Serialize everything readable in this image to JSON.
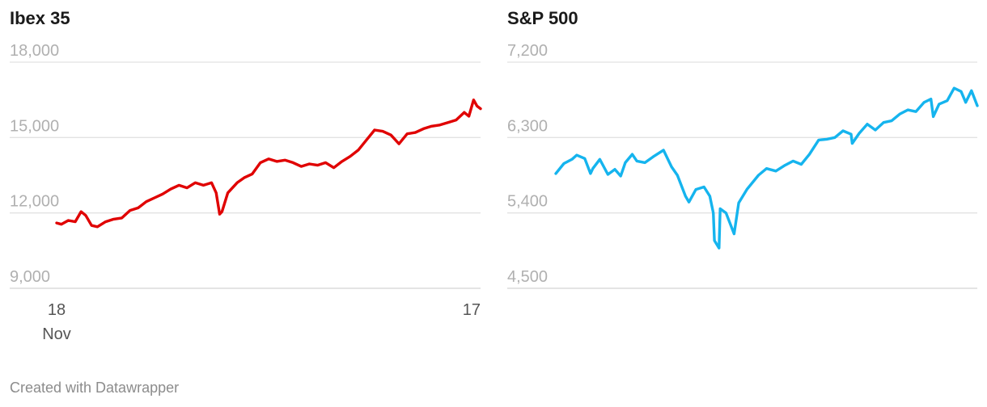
{
  "footer": "Created with Datawrapper",
  "chart_data": [
    {
      "type": "line",
      "title": "Ibex 35",
      "color": "#e00000",
      "ylim": [
        9000,
        18000
      ],
      "yticks": [
        9000,
        12000,
        15000,
        18000
      ],
      "ytick_labels": [
        "9,000",
        "12,000",
        "15,000",
        "18,000"
      ],
      "xlim": [
        "2024-11-18",
        "2025-11-17"
      ],
      "xtick_labels": [
        {
          "date": "2024-11-18",
          "lines": [
            "18",
            "Nov"
          ]
        },
        {
          "date": "2025-11-17",
          "lines": [
            "17"
          ]
        }
      ],
      "grid": true,
      "series": [
        {
          "x": [
            "2024-11-18",
            "2024-11-22",
            "2024-11-28",
            "2024-12-04",
            "2024-12-09",
            "2024-12-13",
            "2024-12-18",
            "2024-12-23",
            "2024-12-30",
            "2025-01-06",
            "2025-01-13",
            "2025-01-20",
            "2025-01-27",
            "2025-02-03",
            "2025-02-10",
            "2025-02-17",
            "2025-02-24",
            "2025-03-03",
            "2025-03-10",
            "2025-03-17",
            "2025-03-24",
            "2025-03-31",
            "2025-04-04",
            "2025-04-07",
            "2025-04-09",
            "2025-04-14",
            "2025-04-22",
            "2025-04-28",
            "2025-05-05",
            "2025-05-12",
            "2025-05-19",
            "2025-05-26",
            "2025-06-02",
            "2025-06-09",
            "2025-06-16",
            "2025-06-23",
            "2025-06-30",
            "2025-07-07",
            "2025-07-14",
            "2025-07-21",
            "2025-07-28",
            "2025-08-04",
            "2025-08-11",
            "2025-08-18",
            "2025-08-25",
            "2025-09-01",
            "2025-09-08",
            "2025-09-15",
            "2025-09-22",
            "2025-09-29",
            "2025-10-06",
            "2025-10-13",
            "2025-10-20",
            "2025-10-27",
            "2025-11-03",
            "2025-11-07",
            "2025-11-11",
            "2025-11-14",
            "2025-11-17"
          ],
          "y": [
            11600,
            11550,
            11700,
            11650,
            12050,
            11900,
            11500,
            11450,
            11650,
            11750,
            11800,
            12100,
            12200,
            12450,
            12600,
            12750,
            12950,
            13100,
            13000,
            13200,
            13100,
            13200,
            12800,
            11950,
            12050,
            12800,
            13200,
            13400,
            13550,
            14000,
            14150,
            14050,
            14100,
            14000,
            13850,
            13950,
            13900,
            14000,
            13800,
            14050,
            14250,
            14500,
            14900,
            15300,
            15250,
            15100,
            14750,
            15150,
            15200,
            15350,
            15450,
            15500,
            15600,
            15700,
            16000,
            15850,
            16500,
            16250,
            16150
          ]
        }
      ]
    },
    {
      "type": "line",
      "title": "S&P 500",
      "color": "#15b4ee",
      "ylim": [
        4500,
        7200
      ],
      "yticks": [
        4500,
        5400,
        6300,
        7200
      ],
      "ytick_labels": [
        "4,500",
        "5,400",
        "6,300",
        "7,200"
      ],
      "xlim": [
        "2024-11-18",
        "2025-11-17"
      ],
      "grid": true,
      "series": [
        {
          "x": [
            "2024-11-18",
            "2024-11-25",
            "2024-12-02",
            "2024-12-06",
            "2024-12-13",
            "2024-12-18",
            "2024-12-20",
            "2024-12-26",
            "2025-01-02",
            "2025-01-08",
            "2025-01-13",
            "2025-01-17",
            "2025-01-23",
            "2025-01-27",
            "2025-02-03",
            "2025-02-10",
            "2025-02-19",
            "2025-02-26",
            "2025-03-03",
            "2025-03-10",
            "2025-03-13",
            "2025-03-19",
            "2025-03-26",
            "2025-03-31",
            "2025-04-03",
            "2025-04-04",
            "2025-04-08",
            "2025-04-09",
            "2025-04-14",
            "2025-04-21",
            "2025-04-25",
            "2025-05-02",
            "2025-05-12",
            "2025-05-19",
            "2025-05-27",
            "2025-06-04",
            "2025-06-11",
            "2025-06-18",
            "2025-06-25",
            "2025-07-03",
            "2025-07-10",
            "2025-07-17",
            "2025-07-24",
            "2025-07-31",
            "2025-08-01",
            "2025-08-07",
            "2025-08-14",
            "2025-08-21",
            "2025-08-28",
            "2025-09-04",
            "2025-09-11",
            "2025-09-18",
            "2025-09-25",
            "2025-10-02",
            "2025-10-08",
            "2025-10-10",
            "2025-10-15",
            "2025-10-22",
            "2025-10-28",
            "2025-11-03",
            "2025-11-07",
            "2025-11-12",
            "2025-11-17"
          ],
          "y": [
            5870,
            5990,
            6040,
            6090,
            6050,
            5870,
            5930,
            6040,
            5860,
            5920,
            5840,
            6000,
            6100,
            6020,
            6000,
            6070,
            6150,
            5950,
            5850,
            5600,
            5530,
            5680,
            5710,
            5600,
            5400,
            5070,
            4980,
            5450,
            5400,
            5150,
            5520,
            5680,
            5850,
            5930,
            5900,
            5970,
            6020,
            5980,
            6100,
            6270,
            6280,
            6300,
            6380,
            6340,
            6230,
            6350,
            6460,
            6390,
            6480,
            6500,
            6580,
            6630,
            6610,
            6720,
            6760,
            6550,
            6700,
            6740,
            6890,
            6850,
            6720,
            6860,
            6680
          ]
        }
      ]
    }
  ]
}
